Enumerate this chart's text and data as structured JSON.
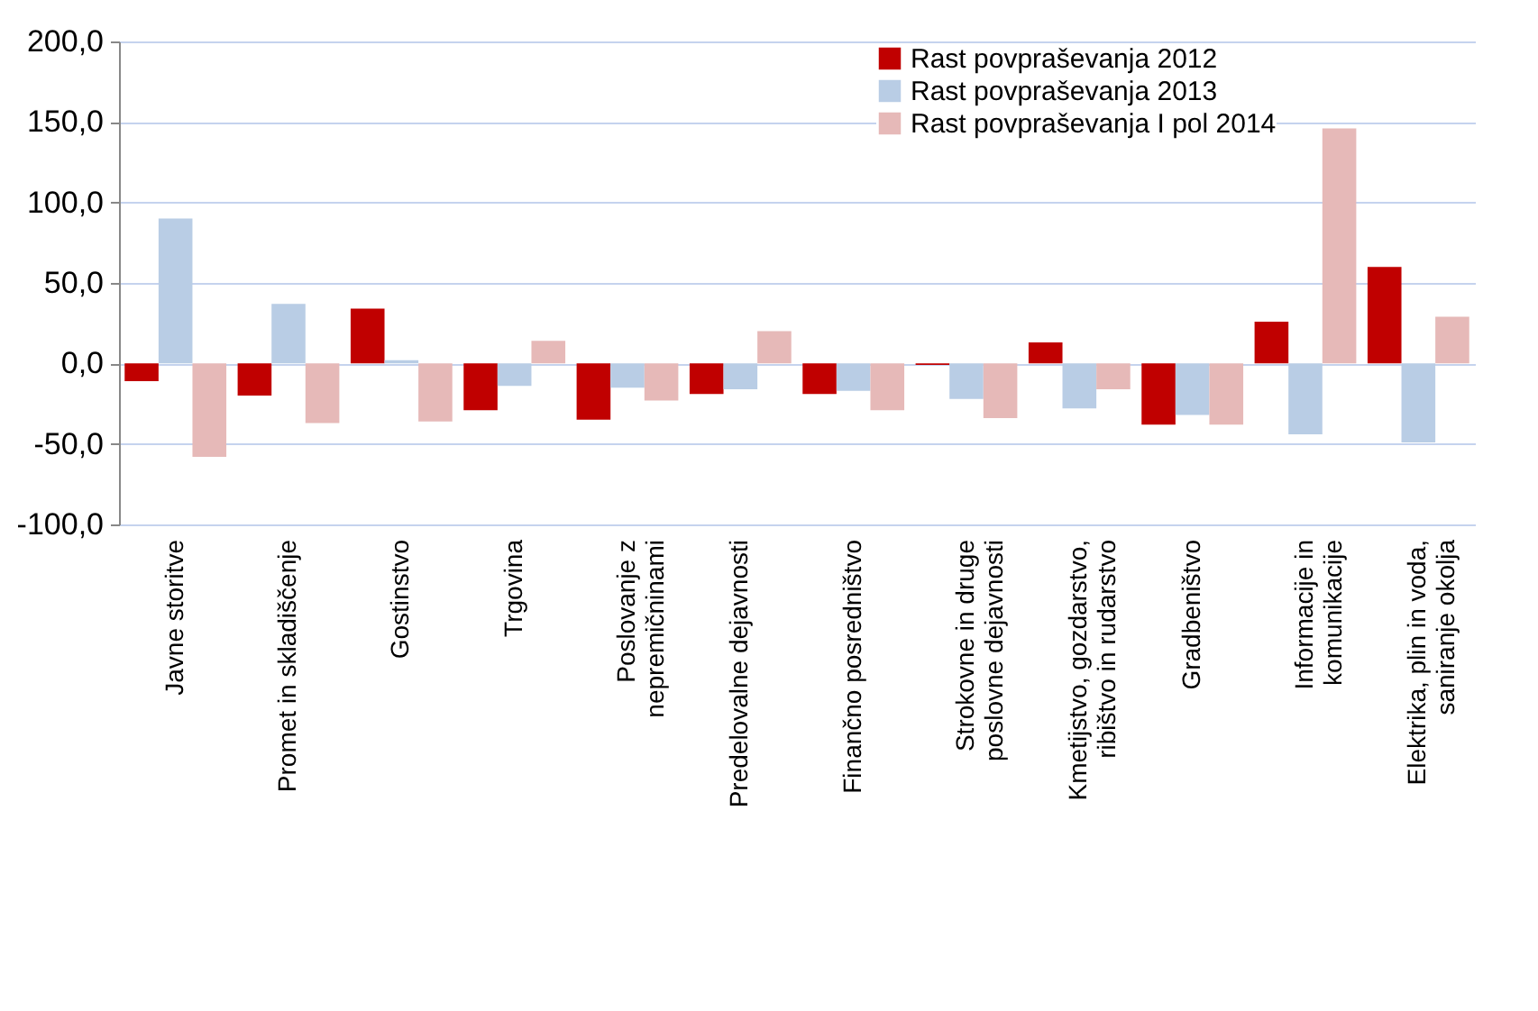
{
  "chart_data": {
    "type": "bar",
    "categories": [
      "Javne storitve",
      "Promet in skladiščenje",
      "Gostinstvo",
      "Trgovina",
      "Poslovanje z nepremičninami",
      "Predelovalne dejavnosti",
      "Finančno posredništvo",
      "Strokovne in druge poslovne dejavnosti",
      "Kmetijstvo, gozdarstvo, ribištvo in rudarstvo",
      "Gradbeništvo",
      "Informacije in komunikacije",
      "Elektrika, plin in voda, saniranje okolja"
    ],
    "series": [
      {
        "name": "Rast povpraševanja 2012",
        "color": "#c00000",
        "values": [
          -11,
          -20,
          34,
          -29,
          -35,
          -19,
          -19,
          -1,
          13,
          -38,
          26,
          60
        ]
      },
      {
        "name": "Rast povpraševanja 2013",
        "color": "#b9cde5",
        "values": [
          90,
          37,
          2,
          -14,
          -15,
          -16,
          -17,
          -22,
          -28,
          -32,
          -44,
          -49
        ]
      },
      {
        "name": "Rast povpraševanja I pol 2014",
        "color": "#e6b9b8",
        "values": [
          -58,
          -37,
          -36,
          14,
          -23,
          20,
          -29,
          -34,
          -16,
          -38,
          146,
          29
        ]
      }
    ],
    "ylim": [
      -100,
      200
    ],
    "yticks": [
      {
        "value": -100,
        "label": "-100,0"
      },
      {
        "value": -50,
        "label": "-50,0"
      },
      {
        "value": 0,
        "label": "0,0"
      },
      {
        "value": 50,
        "label": "50,0"
      },
      {
        "value": 100,
        "label": "100,0"
      },
      {
        "value": 150,
        "label": "150,0"
      },
      {
        "value": 200,
        "label": "200,0"
      }
    ],
    "grid": "y",
    "legend": "top"
  }
}
